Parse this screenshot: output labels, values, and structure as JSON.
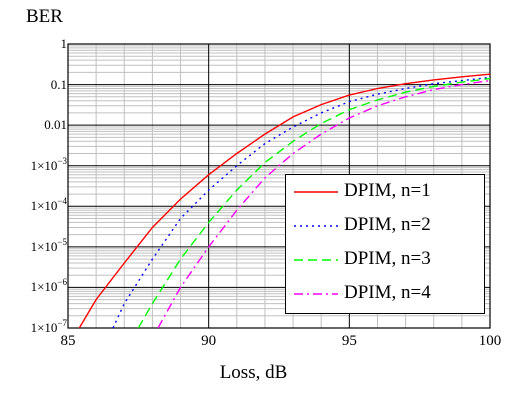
{
  "chart_data": {
    "type": "line",
    "xlabel": "Loss, dB",
    "ylabel": "BER",
    "xlim": [
      85,
      100
    ],
    "ylim": [
      1e-07,
      1
    ],
    "yscale": "log",
    "x_tick_labels": [
      "85",
      "90",
      "95",
      "100"
    ],
    "x_ticks": [
      85,
      90,
      95,
      100
    ],
    "y_ticks": [
      {
        "value": 1,
        "label": "1"
      },
      {
        "value": 0.1,
        "label": "0.1"
      },
      {
        "value": 0.01,
        "label": "0.01"
      },
      {
        "value": 0.001,
        "base": "1×10",
        "exp": "−3"
      },
      {
        "value": 0.0001,
        "base": "1×10",
        "exp": "−4"
      },
      {
        "value": 1e-05,
        "base": "1×10",
        "exp": "−5"
      },
      {
        "value": 1e-06,
        "base": "1×10",
        "exp": "−6"
      },
      {
        "value": 1e-07,
        "base": "1×10",
        "exp": "−7"
      }
    ],
    "grid": true,
    "legend_position": "lower-right",
    "series": [
      {
        "name": "DPIM, n=1",
        "color": "#ff0000",
        "style": "solid",
        "x": [
          85.4,
          86,
          87,
          88,
          89,
          90,
          91,
          92,
          93,
          94,
          95,
          96,
          97,
          98,
          99,
          100
        ],
        "y": [
          1e-07,
          5e-07,
          4e-06,
          3e-05,
          0.00015,
          0.0006,
          0.002,
          0.006,
          0.016,
          0.032,
          0.055,
          0.08,
          0.105,
          0.13,
          0.155,
          0.18
        ]
      },
      {
        "name": "DPIM, n=2",
        "color": "#0000ff",
        "style": "dotted",
        "x": [
          86.6,
          87,
          88,
          89,
          90,
          91,
          92,
          93,
          94,
          95,
          96,
          97,
          98,
          99,
          100
        ],
        "y": [
          1e-07,
          4e-07,
          5e-06,
          5e-05,
          0.00025,
          0.001,
          0.0035,
          0.009,
          0.02,
          0.038,
          0.058,
          0.08,
          0.105,
          0.125,
          0.15
        ]
      },
      {
        "name": "DPIM, n=3",
        "color": "#00ff00",
        "style": "dashed",
        "x": [
          87.5,
          88,
          89,
          90,
          91,
          92,
          93,
          94,
          95,
          96,
          97,
          98,
          99,
          100
        ],
        "y": [
          1e-07,
          4e-07,
          5e-06,
          4e-05,
          0.00025,
          0.0012,
          0.004,
          0.011,
          0.024,
          0.042,
          0.065,
          0.09,
          0.115,
          0.14
        ]
      },
      {
        "name": "DPIM, n=4",
        "color": "#ff00ff",
        "style": "dashdot",
        "x": [
          88.2,
          89,
          90,
          91,
          92,
          93,
          94,
          95,
          96,
          97,
          98,
          99,
          100
        ],
        "y": [
          1e-07,
          1e-06,
          1e-05,
          8e-05,
          0.0005,
          0.002,
          0.006,
          0.015,
          0.03,
          0.05,
          0.075,
          0.1,
          0.125
        ]
      }
    ]
  }
}
